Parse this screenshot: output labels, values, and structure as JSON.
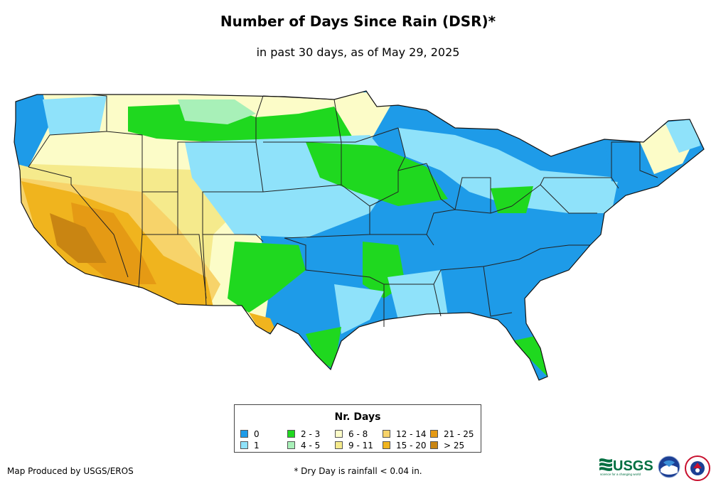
{
  "title": "Number of Days Since Rain (DSR)*",
  "subtitle": "in past 30 days, as of May 29, 2025",
  "legend": {
    "title": "Nr. Days",
    "items": [
      {
        "label": "0",
        "color": "#1e9be8"
      },
      {
        "label": "1",
        "color": "#8fe2fa"
      },
      {
        "label": "2 - 3",
        "color": "#1fd81f"
      },
      {
        "label": "4 - 5",
        "color": "#a8f0b8"
      },
      {
        "label": "6 - 8",
        "color": "#fcfcc8"
      },
      {
        "label": "9 - 11",
        "color": "#f5ea8c"
      },
      {
        "label": "12 - 14",
        "color": "#f7d36a"
      },
      {
        "label": "15 - 20",
        "color": "#f0b41e"
      },
      {
        "label": "21 - 25",
        "color": "#e59a14"
      },
      {
        "label": "> 25",
        "color": "#c98512"
      }
    ]
  },
  "credit": "Map Produced by USGS/EROS",
  "footnote": "* Dry Day is rainfall < 0.04 in.",
  "logos": {
    "usgs": "USGS",
    "usgs_tagline": "science for a changing world",
    "noaa": "NOAA",
    "nws": "NWS"
  }
}
